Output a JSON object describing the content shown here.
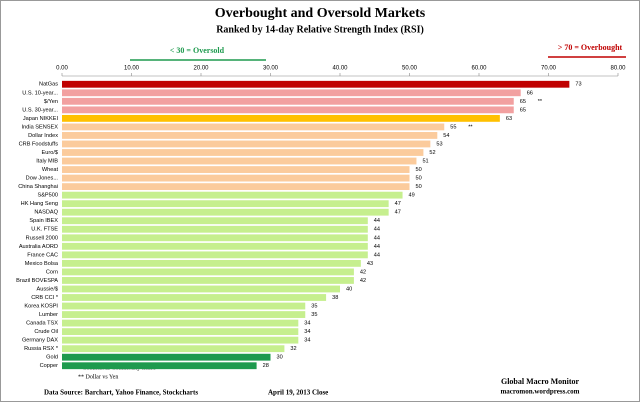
{
  "chart_data": {
    "type": "hbar",
    "title": "Overbought and Oversold Markets",
    "subtitle": "Ranked by 14-day Relative Strength Index (RSI)",
    "oversold_note": "< 30 = Oversold",
    "overbought_note": "> 70 = Overbought",
    "categories": [
      "NatGas",
      "U.S. 10-year...",
      "$/Yen",
      "U.S. 30-year...",
      "Japan NIKKEI",
      "India SENSEX",
      "Dollar Index",
      "CRB Foodstuffs",
      "Euro/$",
      "Italy MIB",
      "Wheat",
      "Dow Jones...",
      "China Shanghai",
      "S&P500",
      "HK Hang Seng",
      "NASDAQ",
      "Spain IBEX",
      "U.K. FTSE",
      "Russell 2000",
      "Australia AORD",
      "France CAC",
      "Mexico Bolsa",
      "Corn",
      "Brazil BOVESPA",
      "Aussie/$",
      "CRB CCI *",
      "Korea KOSPI",
      "Lumber",
      "Canada TSX",
      "Crude Oil",
      "Germany DAX",
      "Russia RSX *",
      "Gold",
      "Copper"
    ],
    "values": [
      73,
      66,
      65,
      65,
      63,
      55,
      54,
      53,
      52,
      51,
      50,
      50,
      50,
      49,
      47,
      47,
      44,
      44,
      44,
      44,
      44,
      43,
      42,
      42,
      40,
      38,
      35,
      35,
      34,
      34,
      34,
      32,
      30,
      28
    ],
    "colors": [
      "#c00000",
      "#f2a0a0",
      "#f2a0a0",
      "#f2a0a0",
      "#ffc000",
      "#fbcb9c",
      "#fbcb9c",
      "#fbcb9c",
      "#fbcb9c",
      "#fbcb9c",
      "#fbcb9c",
      "#fbcb9c",
      "#fbcb9c",
      "#c6ef8e",
      "#c6ef8e",
      "#c6ef8e",
      "#c6ef8e",
      "#c6ef8e",
      "#c6ef8e",
      "#c6ef8e",
      "#c6ef8e",
      "#c6ef8e",
      "#c6ef8e",
      "#c6ef8e",
      "#c6ef8e",
      "#c6ef8e",
      "#c6ef8e",
      "#c6ef8e",
      "#c6ef8e",
      "#c6ef8e",
      "#c6ef8e",
      "#c6ef8e",
      "#1e9a4e",
      "#1e9a4e"
    ],
    "flags": [
      null,
      null,
      "**",
      null,
      null,
      "**",
      null,
      null,
      null,
      null,
      null,
      null,
      null,
      null,
      null,
      null,
      null,
      null,
      null,
      null,
      null,
      null,
      null,
      null,
      null,
      null,
      null,
      null,
      null,
      null,
      null,
      null,
      null,
      null
    ],
    "xlim": [
      0,
      80
    ],
    "xticks": [
      {
        "value": 0,
        "label": "0.00"
      },
      {
        "value": 10,
        "label": "10.00"
      },
      {
        "value": 20,
        "label": "20.00"
      },
      {
        "value": 30,
        "label": "30.00"
      },
      {
        "value": 40,
        "label": "40.00"
      },
      {
        "value": 50,
        "label": "50.00"
      },
      {
        "value": 60,
        "label": "60.00"
      },
      {
        "value": 70,
        "label": "70.00"
      },
      {
        "value": 80,
        "label": "80.00"
      }
    ],
    "footnotes": [
      "* Continuous Commodity Index",
      "** Dollar vs Yen"
    ],
    "source": "Data Source: Barchart, Yahoo Finance, Stockcharts",
    "date": "April 19, 2013  Close",
    "brand": "Global Macro Monitor",
    "website": "macromon.wordpress.com"
  }
}
